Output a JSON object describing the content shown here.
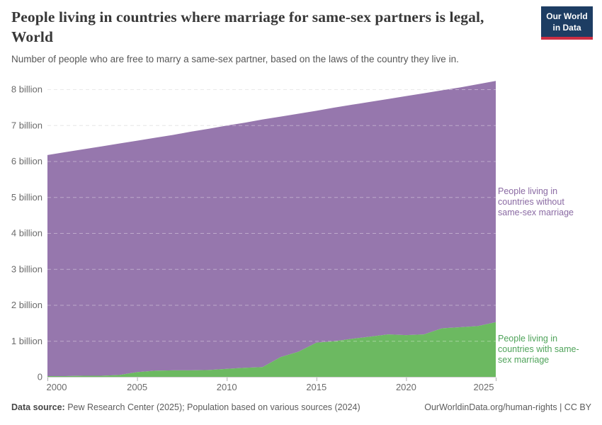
{
  "header": {
    "title": "People living in countries where marriage for same-sex partners is legal, World",
    "subtitle": "Number of people who are free to marry a same-sex partner, based on the laws of the country they live in.",
    "logo": {
      "line1": "Our World",
      "line2": "in Data",
      "bg_color": "#1d3d63",
      "accent_color": "#cc2e43"
    }
  },
  "chart_data": {
    "type": "area",
    "stacked": true,
    "grid": "dashed-horizontal",
    "x_label": "",
    "y_label": "",
    "x": [
      2000,
      2001,
      2002,
      2003,
      2004,
      2005,
      2006,
      2007,
      2008,
      2009,
      2010,
      2011,
      2012,
      2013,
      2014,
      2015,
      2016,
      2017,
      2018,
      2019,
      2020,
      2021,
      2022,
      2023,
      2024,
      2025
    ],
    "x_ticks": [
      2000,
      2005,
      2010,
      2015,
      2020,
      2025
    ],
    "y_ticks": [
      {
        "value": 0,
        "label": "0"
      },
      {
        "value": 1,
        "label": "1 billion"
      },
      {
        "value": 2,
        "label": "2 billion"
      },
      {
        "value": 3,
        "label": "3 billion"
      },
      {
        "value": 4,
        "label": "4 billion"
      },
      {
        "value": 5,
        "label": "5 billion"
      },
      {
        "value": 6,
        "label": "6 billion"
      },
      {
        "value": 7,
        "label": "7 billion"
      },
      {
        "value": 8,
        "label": "8 billion"
      }
    ],
    "ylim": [
      0,
      8.35
    ],
    "units": "billions of people",
    "series": [
      {
        "name": "People living in countries with same-sex marriage",
        "color": "#6cb961",
        "label_color": "#4fa35a",
        "values": [
          0.02,
          0.02,
          0.03,
          0.03,
          0.05,
          0.13,
          0.17,
          0.18,
          0.18,
          0.19,
          0.22,
          0.25,
          0.27,
          0.55,
          0.7,
          0.95,
          0.99,
          1.06,
          1.12,
          1.18,
          1.16,
          1.18,
          1.35,
          1.38,
          1.41,
          1.52
        ]
      },
      {
        "name": "People living in countries without same-sex marriage",
        "color": "#9677ad",
        "label_color": "#8a6aa3",
        "values": [
          6.15,
          6.23,
          6.3,
          6.38,
          6.44,
          6.44,
          6.48,
          6.55,
          6.64,
          6.71,
          6.77,
          6.82,
          6.89,
          6.69,
          6.62,
          6.45,
          6.5,
          6.51,
          6.53,
          6.55,
          6.65,
          6.71,
          6.62,
          6.67,
          6.73,
          6.71
        ]
      }
    ],
    "legend_position": "right-of-plot"
  },
  "footer": {
    "data_source_label": "Data source:",
    "data_source_text": "Pew Research Center (2025); Population based on various sources (2024)",
    "right_text": "OurWorldinData.org/human-rights | CC BY"
  }
}
